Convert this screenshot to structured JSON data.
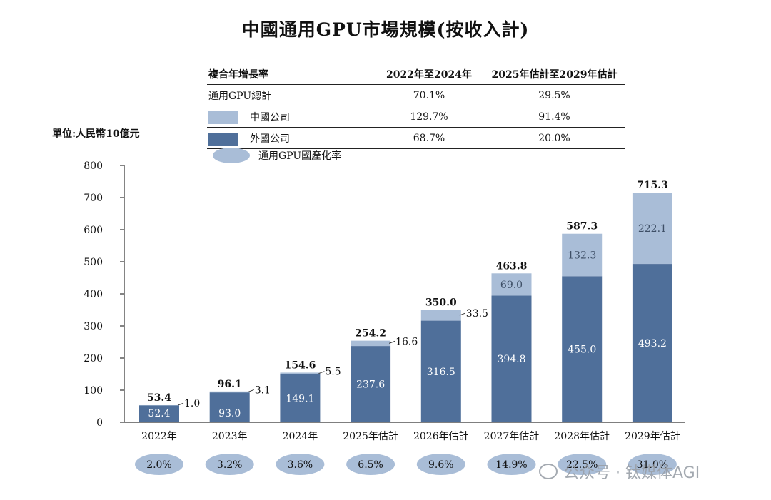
{
  "title": "中國通用GPU市場規模(按收入計)",
  "unit_label": "單位:人民幣10億元",
  "cagr_table": {
    "header": [
      "複合年增長率",
      "2022年至2024年",
      "2025年估計至2029年估計"
    ],
    "rows": [
      {
        "label": "通用GPU總計",
        "v1": "70.1%",
        "v2": "29.5%",
        "swatch": "none"
      },
      {
        "label": "中國公司",
        "v1": "129.7%",
        "v2": "91.4%",
        "swatch": "light"
      },
      {
        "label": "外國公司",
        "v1": "68.7%",
        "v2": "20.0%",
        "swatch": "dark"
      }
    ]
  },
  "rate_legend_label": "通用GPU國產化率",
  "watermark": "公众号 · 钛媒体AGI",
  "colors": {
    "domestic": "#a9bdd7",
    "foreign": "#4f6f9a",
    "rate_oval": "#a9bdd7"
  },
  "chart_data": {
    "type": "bar",
    "stacked": true,
    "categories": [
      "2022年",
      "2023年",
      "2024年",
      "2025年估計",
      "2026年估計",
      "2027年估計",
      "2028年估計",
      "2029年估計"
    ],
    "series": [
      {
        "name": "外國公司",
        "values": [
          52.4,
          93.0,
          149.1,
          237.6,
          316.5,
          394.8,
          455.0,
          493.2
        ]
      },
      {
        "name": "中國公司",
        "values": [
          1.0,
          3.1,
          5.5,
          16.6,
          33.5,
          69.0,
          132.3,
          222.1
        ]
      }
    ],
    "totals": [
      53.4,
      96.1,
      154.6,
      254.2,
      350.0,
      463.8,
      587.3,
      715.3
    ],
    "localization_rate": [
      "2.0%",
      "3.2%",
      "3.6%",
      "6.5%",
      "9.6%",
      "14.9%",
      "22.5%",
      "31.0%"
    ],
    "yticks": [
      0,
      100,
      200,
      300,
      400,
      500,
      600,
      700,
      800
    ],
    "ylim": [
      0,
      800
    ]
  }
}
